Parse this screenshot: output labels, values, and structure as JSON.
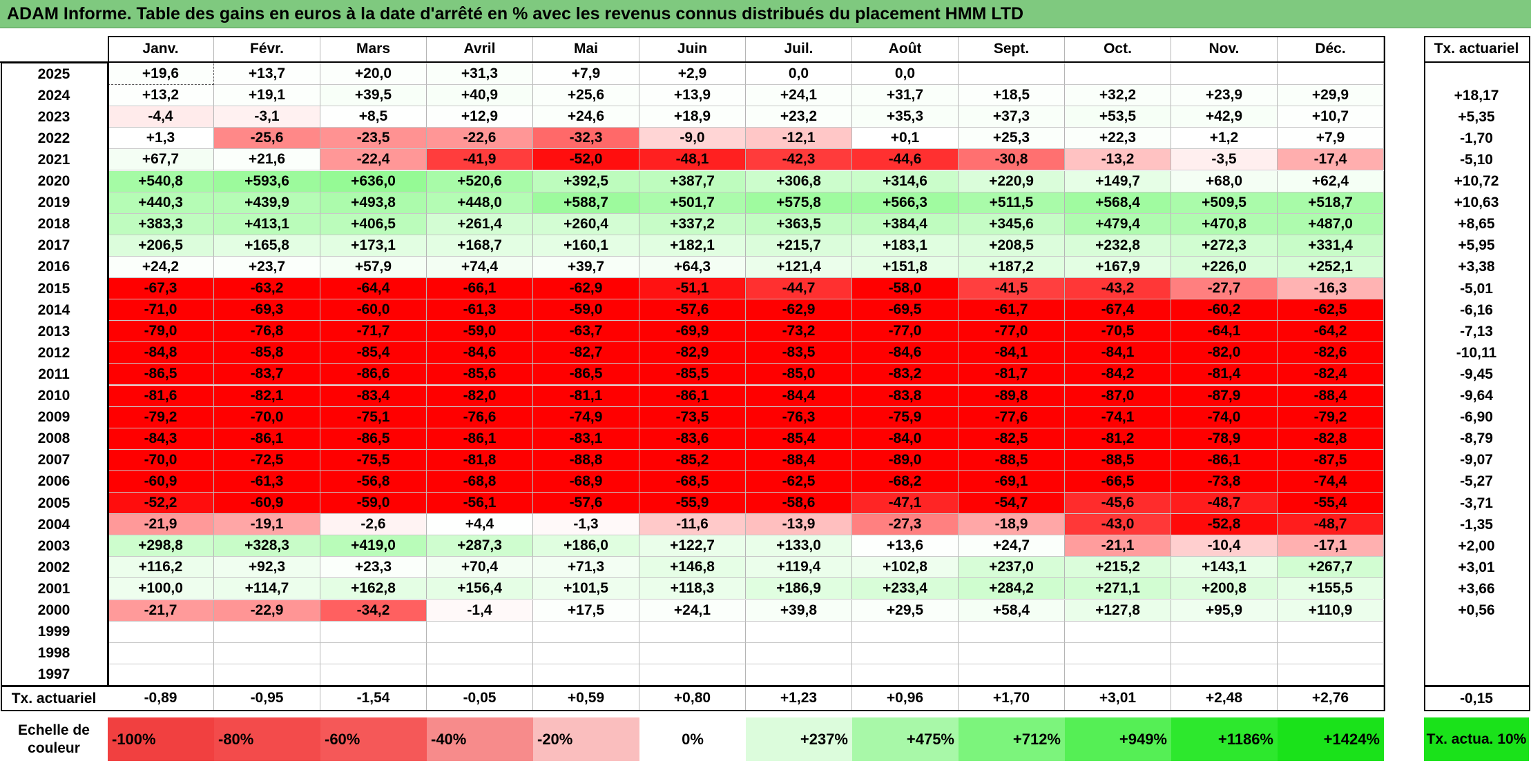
{
  "title": "ADAM Informe. Table des gains en euros à la date d'arrêté en % avec les revenus connus distribués du placement HMM LTD",
  "chart_data": {
    "type": "table",
    "columns": [
      "Janv.",
      "Févr.",
      "Mars",
      "Avril",
      "Mai",
      "Juin",
      "Juil.",
      "Août",
      "Sept.",
      "Oct.",
      "Nov.",
      "Déc."
    ],
    "rate_header": "Tx. actuariel",
    "rows": [
      {
        "year": "2025",
        "values": [
          "+19,6",
          "+13,7",
          "+20,0",
          "+31,3",
          "+7,9",
          "+2,9",
          "0,0",
          "0,0",
          "",
          "",
          "",
          ""
        ],
        "rate": ""
      },
      {
        "year": "2024",
        "values": [
          "+13,2",
          "+19,1",
          "+39,5",
          "+40,9",
          "+25,6",
          "+13,9",
          "+24,1",
          "+31,7",
          "+18,5",
          "+32,2",
          "+23,9",
          "+29,9"
        ],
        "rate": "+18,17"
      },
      {
        "year": "2023",
        "values": [
          "-4,4",
          "-3,1",
          "+8,5",
          "+12,9",
          "+24,6",
          "+18,9",
          "+23,2",
          "+35,3",
          "+37,3",
          "+53,5",
          "+42,9",
          "+10,7"
        ],
        "rate": "+5,35"
      },
      {
        "year": "2022",
        "values": [
          "+1,3",
          "-25,6",
          "-23,5",
          "-22,6",
          "-32,3",
          "-9,0",
          "-12,1",
          "+0,1",
          "+25,3",
          "+22,3",
          "+1,2",
          "+7,9"
        ],
        "rate": "-1,70"
      },
      {
        "year": "2021",
        "values": [
          "+67,7",
          "+21,6",
          "-22,4",
          "-41,9",
          "-52,0",
          "-48,1",
          "-42,3",
          "-44,6",
          "-30,8",
          "-13,2",
          "-3,5",
          "-17,4"
        ],
        "rate": "-5,10"
      },
      {
        "year": "2020",
        "values": [
          "+540,8",
          "+593,6",
          "+636,0",
          "+520,6",
          "+392,5",
          "+387,7",
          "+306,8",
          "+314,6",
          "+220,9",
          "+149,7",
          "+68,0",
          "+62,4"
        ],
        "rate": "+10,72"
      },
      {
        "year": "2019",
        "values": [
          "+440,3",
          "+439,9",
          "+493,8",
          "+448,0",
          "+588,7",
          "+501,7",
          "+575,8",
          "+566,3",
          "+511,5",
          "+568,4",
          "+509,5",
          "+518,7"
        ],
        "rate": "+10,63"
      },
      {
        "year": "2018",
        "values": [
          "+383,3",
          "+413,1",
          "+406,5",
          "+261,4",
          "+260,4",
          "+337,2",
          "+363,5",
          "+384,4",
          "+345,6",
          "+479,4",
          "+470,8",
          "+487,0"
        ],
        "rate": "+8,65"
      },
      {
        "year": "2017",
        "values": [
          "+206,5",
          "+165,8",
          "+173,1",
          "+168,7",
          "+160,1",
          "+182,1",
          "+215,7",
          "+183,1",
          "+208,5",
          "+232,8",
          "+272,3",
          "+331,4"
        ],
        "rate": "+5,95"
      },
      {
        "year": "2016",
        "values": [
          "+24,2",
          "+23,7",
          "+57,9",
          "+74,4",
          "+39,7",
          "+64,3",
          "+121,4",
          "+151,8",
          "+187,2",
          "+167,9",
          "+226,0",
          "+252,1"
        ],
        "rate": "+3,38"
      },
      {
        "year": "2015",
        "values": [
          "-67,3",
          "-63,2",
          "-64,4",
          "-66,1",
          "-62,9",
          "-51,1",
          "-44,7",
          "-58,0",
          "-41,5",
          "-43,2",
          "-27,7",
          "-16,3"
        ],
        "rate": "-5,01"
      },
      {
        "year": "2014",
        "values": [
          "-71,0",
          "-69,3",
          "-60,0",
          "-61,3",
          "-59,0",
          "-57,6",
          "-62,9",
          "-69,5",
          "-61,7",
          "-67,4",
          "-60,2",
          "-62,5"
        ],
        "rate": "-6,16"
      },
      {
        "year": "2013",
        "values": [
          "-79,0",
          "-76,8",
          "-71,7",
          "-59,0",
          "-63,7",
          "-69,9",
          "-73,2",
          "-77,0",
          "-77,0",
          "-70,5",
          "-64,1",
          "-64,2"
        ],
        "rate": "-7,13"
      },
      {
        "year": "2012",
        "values": [
          "-84,8",
          "-85,8",
          "-85,4",
          "-84,6",
          "-82,7",
          "-82,9",
          "-83,5",
          "-84,6",
          "-84,1",
          "-84,1",
          "-82,0",
          "-82,6"
        ],
        "rate": "-10,11"
      },
      {
        "year": "2011",
        "values": [
          "-86,5",
          "-83,7",
          "-86,6",
          "-85,6",
          "-86,5",
          "-85,5",
          "-85,0",
          "-83,2",
          "-81,7",
          "-84,2",
          "-81,4",
          "-82,4"
        ],
        "rate": "-9,45"
      },
      {
        "year": "2010",
        "values": [
          "-81,6",
          "-82,1",
          "-83,4",
          "-82,0",
          "-81,1",
          "-86,1",
          "-84,4",
          "-83,8",
          "-89,8",
          "-87,0",
          "-87,9",
          "-88,4"
        ],
        "rate": "-9,64"
      },
      {
        "year": "2009",
        "values": [
          "-79,2",
          "-70,0",
          "-75,1",
          "-76,6",
          "-74,9",
          "-73,5",
          "-76,3",
          "-75,9",
          "-77,6",
          "-74,1",
          "-74,0",
          "-79,2"
        ],
        "rate": "-6,90"
      },
      {
        "year": "2008",
        "values": [
          "-84,3",
          "-86,1",
          "-86,5",
          "-86,1",
          "-83,1",
          "-83,6",
          "-85,4",
          "-84,0",
          "-82,5",
          "-81,2",
          "-78,9",
          "-82,8"
        ],
        "rate": "-8,79"
      },
      {
        "year": "2007",
        "values": [
          "-70,0",
          "-72,5",
          "-75,5",
          "-81,8",
          "-88,8",
          "-85,2",
          "-88,4",
          "-89,0",
          "-88,5",
          "-88,5",
          "-86,1",
          "-87,5"
        ],
        "rate": "-9,07"
      },
      {
        "year": "2006",
        "values": [
          "-60,9",
          "-61,3",
          "-56,8",
          "-68,8",
          "-68,9",
          "-68,5",
          "-62,5",
          "-68,2",
          "-69,1",
          "-66,5",
          "-73,8",
          "-74,4"
        ],
        "rate": "-5,27"
      },
      {
        "year": "2005",
        "values": [
          "-52,2",
          "-60,9",
          "-59,0",
          "-56,1",
          "-57,6",
          "-55,9",
          "-58,6",
          "-47,1",
          "-54,7",
          "-45,6",
          "-48,7",
          "-55,4"
        ],
        "rate": "-3,71"
      },
      {
        "year": "2004",
        "values": [
          "-21,9",
          "-19,1",
          "-2,6",
          "+4,4",
          "-1,3",
          "-11,6",
          "-13,9",
          "-27,3",
          "-18,9",
          "-43,0",
          "-52,8",
          "-48,7"
        ],
        "rate": "-1,35"
      },
      {
        "year": "2003",
        "values": [
          "+298,8",
          "+328,3",
          "+419,0",
          "+287,3",
          "+186,0",
          "+122,7",
          "+133,0",
          "+13,6",
          "+24,7",
          "-21,1",
          "-10,4",
          "-17,1"
        ],
        "rate": "+2,00"
      },
      {
        "year": "2002",
        "values": [
          "+116,2",
          "+92,3",
          "+23,3",
          "+70,4",
          "+71,3",
          "+146,8",
          "+119,4",
          "+102,8",
          "+237,0",
          "+215,2",
          "+143,1",
          "+267,7"
        ],
        "rate": "+3,01"
      },
      {
        "year": "2001",
        "values": [
          "+100,0",
          "+114,7",
          "+162,8",
          "+156,4",
          "+101,5",
          "+118,3",
          "+186,9",
          "+233,4",
          "+284,2",
          "+271,1",
          "+200,8",
          "+155,5"
        ],
        "rate": "+3,66"
      },
      {
        "year": "2000",
        "values": [
          "-21,7",
          "-22,9",
          "-34,2",
          "-1,4",
          "+17,5",
          "+24,1",
          "+39,8",
          "+29,5",
          "+58,4",
          "+127,8",
          "+95,9",
          "+110,9"
        ],
        "rate": "+0,56"
      },
      {
        "year": "1999",
        "values": [
          "",
          "",
          "",
          "",
          "",
          "",
          "",
          "",
          "",
          "",
          "",
          ""
        ],
        "rate": ""
      },
      {
        "year": "1998",
        "values": [
          "",
          "",
          "",
          "",
          "",
          "",
          "",
          "",
          "",
          "",
          "",
          ""
        ],
        "rate": ""
      },
      {
        "year": "1997",
        "values": [
          "",
          "",
          "",
          "",
          "",
          "",
          "",
          "",
          "",
          "",
          "",
          ""
        ],
        "rate": ""
      }
    ],
    "summary_row": {
      "label": "Tx. actuariel",
      "values": [
        "-0,89",
        "-0,95",
        "-1,54",
        "-0,05",
        "+0,59",
        "+0,80",
        "+1,23",
        "+0,96",
        "+1,70",
        "+3,01",
        "+2,48",
        "+2,76"
      ],
      "rate": "-0,15"
    },
    "color_scale": {
      "label": "Echelle de couleur",
      "steps": [
        {
          "label": "-100%",
          "color": "#f14040"
        },
        {
          "label": "-80%",
          "color": "#f34b4b"
        },
        {
          "label": "-60%",
          "color": "#f55858"
        },
        {
          "label": "-40%",
          "color": "#f78b8b"
        },
        {
          "label": "-20%",
          "color": "#fabebe"
        },
        {
          "label": "0%",
          "color": "#ffffff"
        },
        {
          "label": "+237%",
          "color": "#dcfcdc"
        },
        {
          "label": "+475%",
          "color": "#a8f8a8"
        },
        {
          "label": "+712%",
          "color": "#7cf47c"
        },
        {
          "label": "+949%",
          "color": "#55ef55"
        },
        {
          "label": "+1186%",
          "color": "#2de82d"
        },
        {
          "label": "+1424%",
          "color": "#1ae21a"
        }
      ],
      "rate_legend_label": "Tx. actua. 10%",
      "rate_legend_color": "#1ae21a"
    }
  }
}
